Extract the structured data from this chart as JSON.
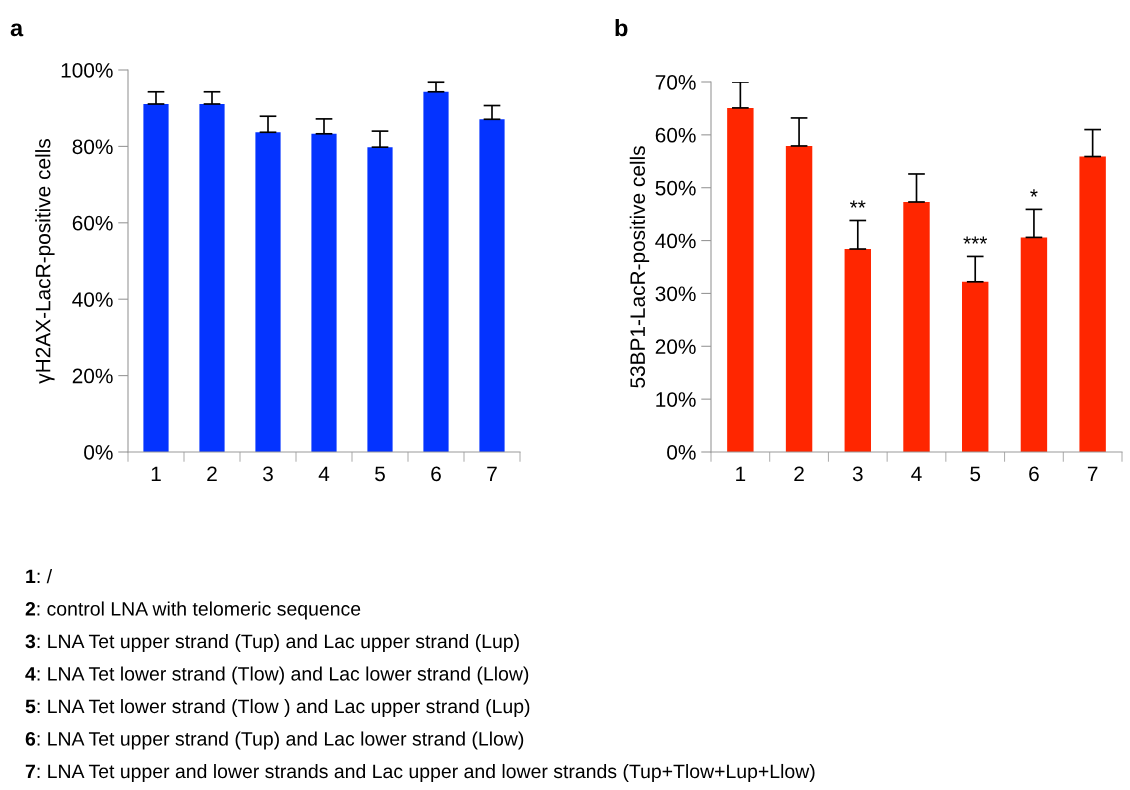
{
  "chart_data": [
    {
      "type": "bar",
      "title": "a",
      "ylabel": "γH2AX-LacR-positive cells",
      "categories": [
        "1",
        "2",
        "3",
        "4",
        "5",
        "6",
        "7"
      ],
      "values": [
        91.1,
        91.1,
        83.7,
        83.3,
        79.8,
        94.3,
        87.1
      ],
      "color": "#0433ff",
      "errors": [
        [
          91.1,
          94.3
        ],
        [
          91.1,
          94.3
        ],
        [
          83.7,
          87.9
        ],
        [
          83.3,
          87.2
        ],
        [
          79.8,
          84.0
        ],
        [
          94.3,
          96.8
        ],
        [
          87.1,
          90.7
        ]
      ],
      "ylim": [
        0,
        100
      ],
      "yticks": [
        {
          "value": 0,
          "label": "0%"
        },
        {
          "value": 20,
          "label": "20%"
        },
        {
          "value": 40,
          "label": "40%"
        },
        {
          "value": 60,
          "label": "60%"
        },
        {
          "value": 80,
          "label": "80%"
        },
        {
          "value": 100,
          "label": "100%"
        }
      ],
      "grid": false,
      "legend": false
    },
    {
      "type": "bar",
      "title": "b",
      "ylabel": "53BP1-LacR-positive cells",
      "categories": [
        "1",
        "2",
        "3",
        "4",
        "5",
        "6",
        "7"
      ],
      "values": [
        65.1,
        57.9,
        38.4,
        47.3,
        32.2,
        40.6,
        55.9
      ],
      "color": "#ff2600",
      "errors": [
        [
          65.1,
          70.0
        ],
        [
          57.9,
          63.2
        ],
        [
          38.4,
          43.8
        ],
        [
          47.3,
          52.6
        ],
        [
          32.2,
          37.0
        ],
        [
          40.6,
          45.9
        ],
        [
          55.9,
          61.0
        ]
      ],
      "ylim": [
        0,
        70
      ],
      "yticks": [
        {
          "value": 0,
          "label": "0%"
        },
        {
          "value": 10,
          "label": "10%"
        },
        {
          "value": 20,
          "label": "20%"
        },
        {
          "value": 30,
          "label": "30%"
        },
        {
          "value": 40,
          "label": "40%"
        },
        {
          "value": 50,
          "label": "50%"
        },
        {
          "value": 60,
          "label": "60%"
        },
        {
          "value": 70,
          "label": "70%"
        }
      ],
      "grid": false,
      "legend": false,
      "annotations": [
        {
          "text": "**",
          "x": "3",
          "y": 43.8
        },
        {
          "text": "***",
          "x": "5",
          "y": 37.0
        },
        {
          "text": "*",
          "x": "6",
          "y": 45.9
        },
        "1: /",
        "2: control LNA with telomeric sequence",
        "3: LNA Tet upper strand (Tup) and Lac upper strand (Lup)",
        "4: LNA Tet lower strand (Tlow) and Lac lower strand (Llow)",
        "5: LNA Tet lower strand (Tlow ) and Lac upper strand (Lup)",
        "6: LNA Tet upper strand (Tup) and Lac lower strand (Llow)",
        "7: LNA Tet upper and lower strands and Lac upper and lower strands (Tup+Tlow+Lup+Llow)"
      ]
    }
  ]
}
